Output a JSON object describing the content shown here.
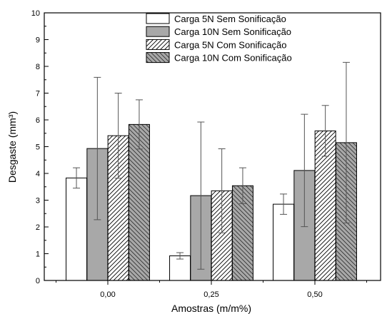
{
  "chart_data": {
    "type": "bar",
    "xlabel": "Amostras (m/m%)",
    "ylabel": "Desgaste (mm³)",
    "ylim": [
      0,
      10
    ],
    "yticks": [
      0,
      1,
      2,
      3,
      4,
      5,
      6,
      7,
      8,
      9,
      10
    ],
    "categories": [
      "0,00",
      "0,25",
      "0,50"
    ],
    "legend_position": "top-right",
    "grid": false,
    "series": [
      {
        "name": "Carga 5N Sem Sonificação",
        "pattern": "white",
        "values": [
          3.83,
          0.92,
          2.85
        ],
        "errors": [
          0.38,
          0.12,
          0.38
        ]
      },
      {
        "name": "Carga 10N Sem Sonificação",
        "pattern": "gray",
        "values": [
          4.93,
          3.17,
          4.11
        ],
        "errors": [
          2.66,
          2.75,
          2.1
        ]
      },
      {
        "name": "Carga 5N Com Sonificação",
        "pattern": "hatch",
        "values": [
          5.41,
          3.35,
          5.59
        ],
        "errors": [
          1.59,
          1.57,
          0.95
        ]
      },
      {
        "name": "Carga 10N Com Sonificação",
        "pattern": "gray-hatch",
        "values": [
          5.83,
          3.54,
          5.15
        ],
        "errors": [
          0.92,
          0.67,
          3.0
        ]
      }
    ]
  }
}
